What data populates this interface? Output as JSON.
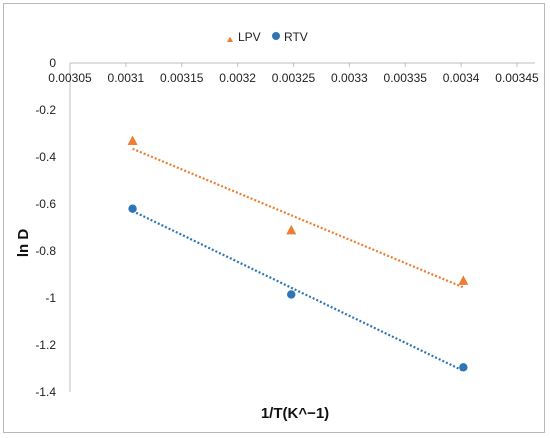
{
  "chart_data": {
    "type": "scatter",
    "title": "",
    "xlabel": "1/T(K^−1)",
    "ylabel": "ln D",
    "xlim": [
      0.00305,
      0.00345
    ],
    "ylim": [
      -1.4,
      0
    ],
    "x_ticks": [
      "0.00305",
      "0.0031",
      "0.00315",
      "0.0032",
      "0.00325",
      "0.0033",
      "0.00335",
      "0.0034",
      "0.00345"
    ],
    "y_ticks": [
      "0",
      "-0.2",
      "-0.4",
      "-0.6",
      "-0.8",
      "-1",
      "-1.2",
      "-1.4"
    ],
    "legend_position": "top",
    "grid": false,
    "series": [
      {
        "name": "LPV",
        "marker": "triangle",
        "color": "#ED7D31",
        "points": [
          [
            0.003106,
            -0.33
          ],
          [
            0.003248,
            -0.71
          ],
          [
            0.003402,
            -0.925
          ]
        ],
        "trendline": {
          "type": "linear",
          "style": "dotted",
          "from": [
            0.003106,
            -0.365
          ],
          "to": [
            0.003402,
            -0.955
          ]
        }
      },
      {
        "name": "RTV",
        "marker": "circle",
        "color": "#2E75B6",
        "points": [
          [
            0.003106,
            -0.62
          ],
          [
            0.003248,
            -0.985
          ],
          [
            0.003402,
            -1.295
          ]
        ],
        "trendline": {
          "type": "linear",
          "style": "dotted",
          "from": [
            0.003106,
            -0.63
          ],
          "to": [
            0.003402,
            -1.31
          ]
        }
      }
    ]
  }
}
